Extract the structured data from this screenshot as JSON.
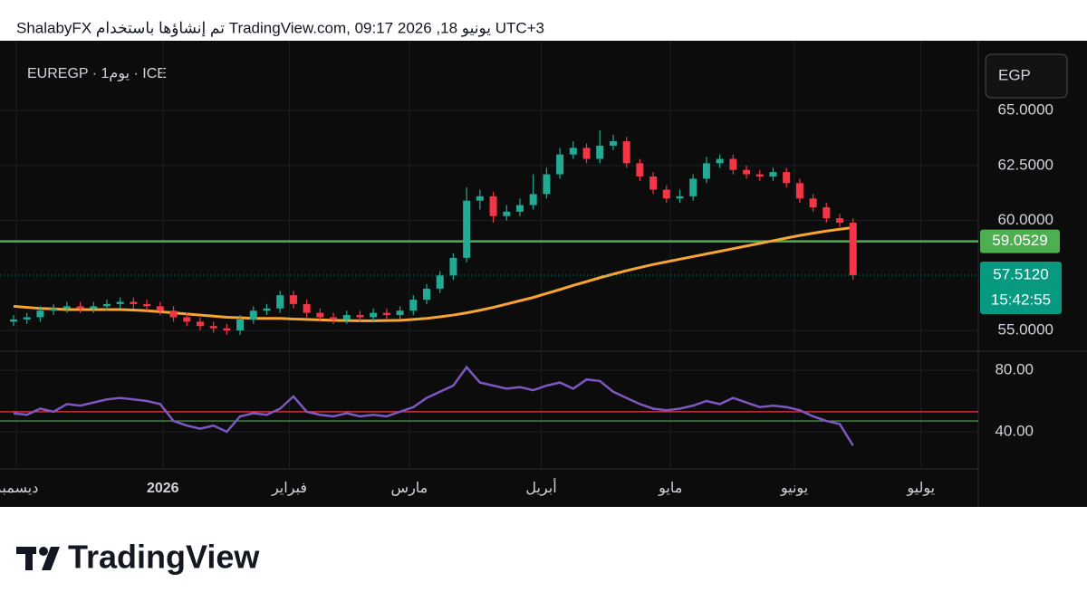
{
  "header": {
    "text": "ShalabyFX تم إنشاؤها باستخدام TradingView.com, يونيو 18, 2026 09:17 UTC+3"
  },
  "chart_data": {
    "type": "candlestick",
    "symbol": "EUREGP · 1يوم · ICE",
    "currency": "EGP",
    "up_color": "#22ab94",
    "down_color": "#f23645",
    "open": [
      55.4,
      55.5,
      55.6,
      55.9,
      56.0,
      56.1,
      56.0,
      56.1,
      56.2,
      56.3,
      56.2,
      56.1,
      55.9,
      55.6,
      55.4,
      55.2,
      55.1,
      55.0,
      55.5,
      55.9,
      56.0,
      56.6,
      56.2,
      55.8,
      55.6,
      55.5,
      55.7,
      55.6,
      55.8,
      55.7,
      55.9,
      56.4,
      56.9,
      57.5,
      58.3,
      60.9,
      61.1,
      60.2,
      60.4,
      60.7,
      61.2,
      62.1,
      63.0,
      63.3,
      62.8,
      63.4,
      63.6,
      62.6,
      62.0,
      61.4,
      61.0,
      61.1,
      61.9,
      62.6,
      62.8,
      62.3,
      62.1,
      62.0,
      62.2,
      61.7,
      61.0,
      60.6,
      60.1,
      59.9
    ],
    "high": [
      55.7,
      55.8,
      56.1,
      56.2,
      56.3,
      56.3,
      56.3,
      56.4,
      56.5,
      56.5,
      56.4,
      56.3,
      56.1,
      55.8,
      55.6,
      55.4,
      55.3,
      55.7,
      56.1,
      56.2,
      56.8,
      56.8,
      56.4,
      56.0,
      55.8,
      55.9,
      55.9,
      56.0,
      56.0,
      56.1,
      56.6,
      57.1,
      57.7,
      58.5,
      61.5,
      61.4,
      61.3,
      60.7,
      61.0,
      62.1,
      62.4,
      63.3,
      63.6,
      63.5,
      64.1,
      63.9,
      63.8,
      62.8,
      62.2,
      61.6,
      61.4,
      62.1,
      62.9,
      63.0,
      63.0,
      62.5,
      62.3,
      62.4,
      62.4,
      61.9,
      61.2,
      60.8,
      60.3,
      60.1
    ],
    "low": [
      55.2,
      55.3,
      55.4,
      55.7,
      55.8,
      55.8,
      55.8,
      55.9,
      56.0,
      56.0,
      55.9,
      55.7,
      55.4,
      55.2,
      55.0,
      54.9,
      54.8,
      54.8,
      55.3,
      55.7,
      55.8,
      56.0,
      55.6,
      55.4,
      55.3,
      55.3,
      55.4,
      55.4,
      55.5,
      55.5,
      55.7,
      56.2,
      56.7,
      57.3,
      58.1,
      60.5,
      59.9,
      60.0,
      60.2,
      60.5,
      61.0,
      61.9,
      62.8,
      62.6,
      62.6,
      63.2,
      62.4,
      61.8,
      61.2,
      60.8,
      60.8,
      60.9,
      61.7,
      62.4,
      62.1,
      61.9,
      61.8,
      61.8,
      61.5,
      60.8,
      60.4,
      59.9,
      59.7,
      57.3
    ],
    "close": [
      55.5,
      55.6,
      55.9,
      56.0,
      56.1,
      56.0,
      56.1,
      56.2,
      56.3,
      56.2,
      56.1,
      55.9,
      55.6,
      55.4,
      55.2,
      55.1,
      55.0,
      55.5,
      55.9,
      56.0,
      56.6,
      56.2,
      55.8,
      55.6,
      55.5,
      55.7,
      55.6,
      55.8,
      55.7,
      55.9,
      56.4,
      56.9,
      57.5,
      58.3,
      60.9,
      61.1,
      60.2,
      60.4,
      60.7,
      61.2,
      62.1,
      63.0,
      63.3,
      62.8,
      63.4,
      63.6,
      62.6,
      62.0,
      61.4,
      61.0,
      61.1,
      61.9,
      62.6,
      62.8,
      62.3,
      62.1,
      62.0,
      62.2,
      61.7,
      61.0,
      60.6,
      60.1,
      59.9,
      57.512
    ],
    "xlim": [
      0,
      72.4
    ],
    "xticks": [
      {
        "value": 0.2,
        "label": "ديسمبر"
      },
      {
        "value": 11.2,
        "label": "2026"
      },
      {
        "value": 20.7,
        "label": "فبراير"
      },
      {
        "value": 29.7,
        "label": "مارس"
      },
      {
        "value": 39.6,
        "label": "أبريل"
      },
      {
        "value": 49.3,
        "label": "مايو"
      },
      {
        "value": 58.6,
        "label": "يونيو"
      },
      {
        "value": 68.1,
        "label": "يوليو"
      }
    ],
    "ylim": [
      54.18,
      67.76
    ],
    "yticks": [
      {
        "value": 55,
        "label": "55.0000"
      },
      {
        "value": 60,
        "label": "60.0000"
      },
      {
        "value": 62.5,
        "label": "62.5000"
      },
      {
        "value": 65,
        "label": "65.0000"
      }
    ],
    "grid": true,
    "moving_average": {
      "color": "#f7a530",
      "values": [
        56.1,
        56.05,
        56.0,
        55.98,
        55.95,
        55.95,
        55.95,
        55.95,
        55.95,
        55.93,
        55.9,
        55.85,
        55.8,
        55.75,
        55.7,
        55.65,
        55.6,
        55.58,
        55.55,
        55.55,
        55.55,
        55.52,
        55.5,
        55.48,
        55.46,
        55.45,
        55.44,
        55.44,
        55.45,
        55.46,
        55.5,
        55.55,
        55.62,
        55.7,
        55.8,
        55.92,
        56.05,
        56.2,
        56.35,
        56.5,
        56.68,
        56.86,
        57.05,
        57.22,
        57.4,
        57.56,
        57.72,
        57.86,
        58.0,
        58.12,
        58.24,
        58.36,
        58.48,
        58.6,
        58.72,
        58.84,
        58.96,
        59.08,
        59.2,
        59.32,
        59.42,
        59.52,
        59.6,
        59.68
      ]
    },
    "horizontal_line": {
      "value": 59.0529,
      "label": "59.0529",
      "color": "#4caf50"
    },
    "last_price": {
      "value": 57.512,
      "label": "57.5120",
      "countdown": "15:42:55",
      "color": "#089981"
    },
    "rsi": {
      "color": "#7e57c2",
      "values": [
        52,
        51,
        55,
        53,
        58,
        57,
        59,
        61,
        62,
        61,
        60,
        58,
        47,
        44,
        42,
        44,
        40,
        50,
        52,
        51,
        55,
        63,
        53,
        51,
        50,
        52,
        50,
        51,
        50,
        53,
        56,
        62,
        66,
        70,
        82,
        72,
        70,
        68,
        69,
        67,
        70,
        72,
        68,
        74,
        73,
        66,
        62,
        58,
        55,
        54,
        55,
        57,
        60,
        58,
        62,
        59,
        56,
        57,
        56,
        54,
        50,
        47,
        45,
        31
      ],
      "ylim": [
        17.6,
        91.2
      ],
      "yticks": [
        {
          "value": 80,
          "label": "80.00"
        },
        {
          "value": 40,
          "label": "40.00"
        }
      ],
      "levels": [
        {
          "value": 53,
          "color": "#f23645"
        },
        {
          "value": 47,
          "color": "#4caf50"
        }
      ]
    }
  },
  "footer": {
    "brand": "TradingView"
  }
}
